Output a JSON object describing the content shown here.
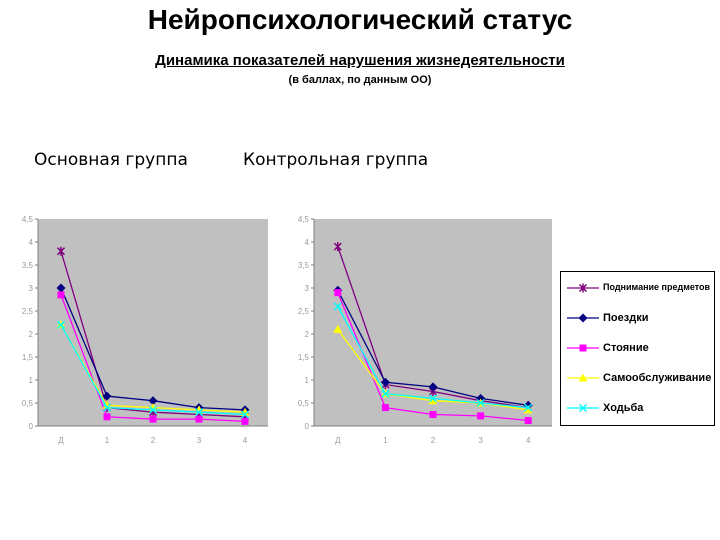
{
  "header": {
    "title": "Нейропсихологический статус",
    "subtitle": "Динамика показателей нарушения жизнедеятельности",
    "note": "(в баллах, по данным ОО)"
  },
  "groups": {
    "main_label": "Основная группа",
    "control_label": "Контрольная группа"
  },
  "colors": {
    "plot_bg": "#c0c0c0",
    "lifting": "#800080",
    "trips": "#000080",
    "standing": "#ff00ff",
    "selfcare": "#ffff00",
    "walking": "#00ffff"
  },
  "chart_data": [
    {
      "type": "line",
      "title": "Основная группа",
      "categories": [
        "Д",
        "1",
        "2",
        "3",
        "4"
      ],
      "ylim": [
        0,
        4.5
      ],
      "yticks": [
        "0",
        "0,5",
        "1",
        "1,5",
        "2",
        "2,5",
        "3",
        "3,5",
        "4",
        "4,5"
      ],
      "grid": false,
      "legend": "right",
      "series": [
        {
          "name": "Поднимание предметов",
          "color": "lifting",
          "marker": "star",
          "values": [
            3.8,
            0.4,
            0.3,
            0.25,
            0.2
          ]
        },
        {
          "name": "Поездки",
          "color": "trips",
          "marker": "diamond",
          "values": [
            3.0,
            0.65,
            0.55,
            0.4,
            0.35
          ]
        },
        {
          "name": "Стояние",
          "color": "standing",
          "marker": "square",
          "values": [
            2.85,
            0.2,
            0.15,
            0.15,
            0.1
          ]
        },
        {
          "name": "Самообслуживание",
          "color": "selfcare",
          "marker": "triangle",
          "values": [
            2.2,
            0.45,
            0.4,
            0.35,
            0.3
          ]
        },
        {
          "name": "Ходьба",
          "color": "walking",
          "marker": "x",
          "values": [
            2.2,
            0.4,
            0.35,
            0.3,
            0.25
          ]
        }
      ]
    },
    {
      "type": "line",
      "title": "Контрольная группа",
      "categories": [
        "Д",
        "1",
        "2",
        "3",
        "4"
      ],
      "ylim": [
        0,
        4.5
      ],
      "yticks": [
        "0",
        "0,5",
        "1",
        "1,5",
        "2",
        "2,5",
        "3",
        "3,5",
        "4",
        "4,5"
      ],
      "grid": false,
      "legend": "right",
      "series": [
        {
          "name": "Поднимание предметов",
          "color": "lifting",
          "marker": "star",
          "values": [
            3.9,
            0.9,
            0.75,
            0.55,
            0.4
          ]
        },
        {
          "name": "Поездки",
          "color": "trips",
          "marker": "diamond",
          "values": [
            2.95,
            0.95,
            0.85,
            0.6,
            0.45
          ]
        },
        {
          "name": "Стояние",
          "color": "standing",
          "marker": "square",
          "values": [
            2.9,
            0.4,
            0.25,
            0.22,
            0.12
          ]
        },
        {
          "name": "Самообслуживание",
          "color": "selfcare",
          "marker": "triangle",
          "values": [
            2.1,
            0.7,
            0.55,
            0.5,
            0.35
          ]
        },
        {
          "name": "Ходьба",
          "color": "walking",
          "marker": "x",
          "values": [
            2.6,
            0.7,
            0.6,
            0.5,
            0.4
          ]
        }
      ]
    }
  ]
}
